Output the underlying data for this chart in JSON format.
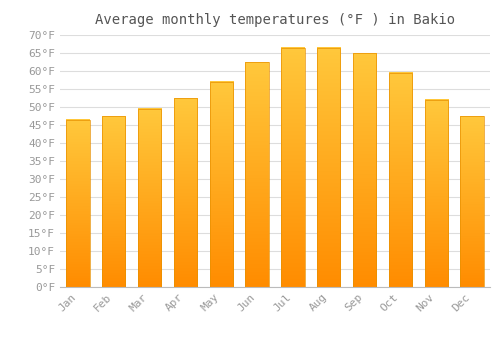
{
  "title": "Average monthly temperatures (°F ) in Bakio",
  "months": [
    "Jan",
    "Feb",
    "Mar",
    "Apr",
    "May",
    "Jun",
    "Jul",
    "Aug",
    "Sep",
    "Oct",
    "Nov",
    "Dec"
  ],
  "values": [
    46.5,
    47.5,
    49.5,
    52.5,
    57,
    62.5,
    66.5,
    66.5,
    65,
    59.5,
    52,
    47.5
  ],
  "bar_color_top": "#FFD966",
  "bar_color_bottom": "#FFA500",
  "bar_edge_color": "#E89000",
  "background_color": "#FFFFFF",
  "plot_bg_color": "#FFFFFF",
  "grid_color": "#DDDDDD",
  "tick_label_color": "#999999",
  "title_color": "#555555",
  "ylim": [
    0,
    70
  ],
  "yticks": [
    0,
    5,
    10,
    15,
    20,
    25,
    30,
    35,
    40,
    45,
    50,
    55,
    60,
    65,
    70
  ],
  "ylabel_suffix": "°F",
  "title_fontsize": 10,
  "tick_fontsize": 8,
  "figsize": [
    5.0,
    3.5
  ],
  "dpi": 100,
  "bar_width": 0.65
}
